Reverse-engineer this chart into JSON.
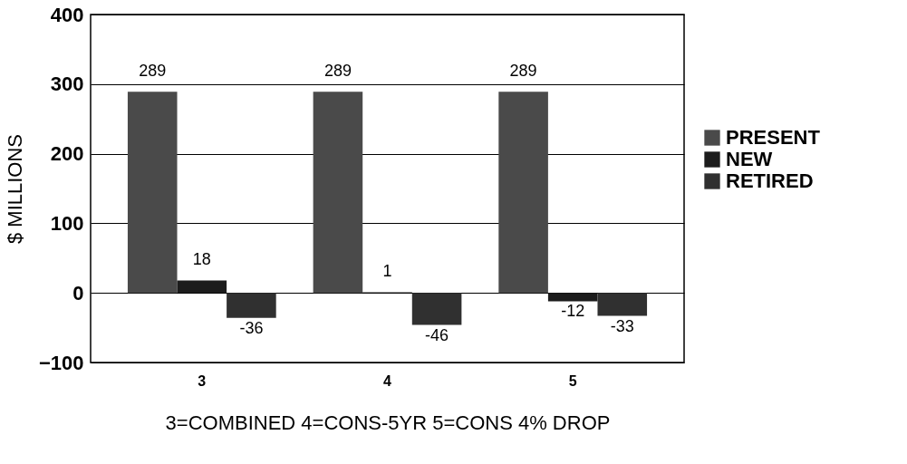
{
  "chart_data": {
    "type": "bar",
    "xlabel": "3=COMBINED  4=CONS-5YR  5=CONS 4% DROP",
    "ylabel": "$ MILLIONS",
    "categories": [
      "3",
      "4",
      "5"
    ],
    "series": [
      {
        "name": "PRESENT",
        "color": "#4a4a4a",
        "values": [
          289,
          289,
          289
        ]
      },
      {
        "name": "NEW",
        "color": "#1c1c1c",
        "values": [
          18,
          1,
          -12
        ]
      },
      {
        "name": "RETIRED",
        "color": "#303030",
        "values": [
          -36,
          -46,
          -33
        ]
      }
    ],
    "ylim": [
      -100,
      400
    ],
    "yticks": [
      -100,
      0,
      100,
      200,
      300,
      400
    ],
    "grid": "y",
    "legend": "right",
    "data_labels": true
  }
}
